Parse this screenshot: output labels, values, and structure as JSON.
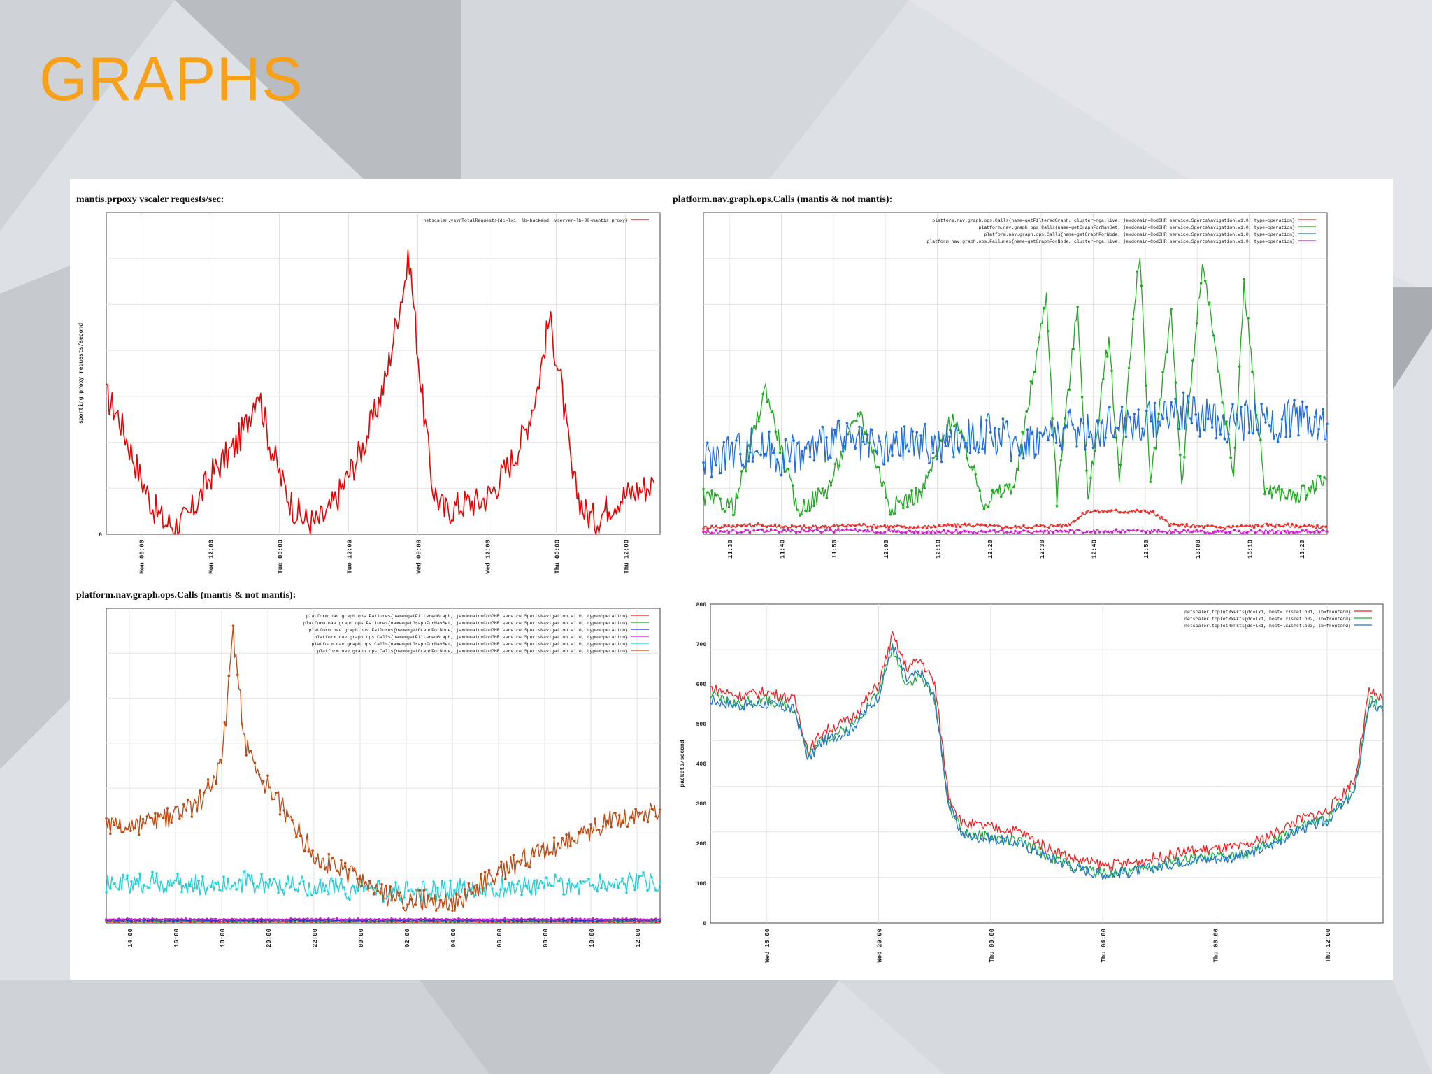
{
  "slide": {
    "title": "GRAPHS",
    "accent_color": "#f7a11a",
    "background_color": "#dcdfe3"
  },
  "charts": {
    "top_left": {
      "title": "mantis.prpoxy vscaler requests/sec:"
    },
    "top_right": {
      "title": "platform.nav.graph.ops.Calls (mantis & not mantis):"
    },
    "bottom_left": {
      "title": "platform.nav.graph.ops.Calls (mantis & not mantis):"
    },
    "bottom_right": {
      "title": ""
    }
  },
  "chart_data": [
    {
      "id": "top_left",
      "type": "line",
      "title": "mantis.prpoxy vscaler requests/sec:",
      "ylabel": "sporting proxy requests/second",
      "xlabel": "",
      "ylim": [
        0,
        7
      ],
      "y_ticks": [
        "0"
      ],
      "x_ticks": [
        "Mon 00:00",
        "Mon 12:00",
        "Tue 00:00",
        "Tue 12:00",
        "Wed 00:00",
        "Wed 12:00",
        "Thu 00:00",
        "Thu 12:00"
      ],
      "x_range": [
        0,
        95
      ],
      "legend_position": "top-right",
      "grid": true,
      "series": [
        {
          "name": "netscaler.vsvrTotalRequests{dc=lx1, lb=backend, vserver=lb-00-mantis_proxy}",
          "color": "#ee0000",
          "x": [
            0,
            2,
            4,
            6,
            8,
            10,
            12,
            14,
            16,
            18,
            20,
            22,
            24,
            26,
            28,
            30,
            32,
            34,
            36,
            38,
            40,
            42,
            44,
            46,
            48,
            50,
            52,
            54,
            56,
            58,
            60,
            62,
            64,
            66,
            68,
            70,
            72,
            74,
            76,
            78,
            80,
            82,
            84,
            86,
            88,
            90,
            92,
            94
          ],
          "y": [
            3.0,
            2.6,
            1.9,
            1.2,
            0.6,
            0.25,
            0.2,
            0.35,
            0.8,
            1.3,
            1.6,
            1.9,
            2.4,
            3.2,
            2.0,
            1.2,
            0.6,
            0.3,
            0.25,
            0.45,
            0.9,
            1.4,
            1.9,
            2.6,
            3.4,
            4.8,
            6.0,
            3.2,
            1.0,
            0.5,
            0.6,
            0.7,
            0.7,
            0.9,
            1.3,
            1.7,
            2.3,
            3.2,
            4.7,
            3.3,
            1.2,
            0.5,
            0.3,
            0.6,
            0.8,
            0.9,
            1.0,
            1.1
          ]
        }
      ]
    },
    {
      "id": "top_right",
      "type": "line",
      "title": "platform.nav.graph.ops.Calls (mantis & not mantis):",
      "xlabel": "",
      "ylabel": "",
      "ylim": [
        0,
        7
      ],
      "x_ticks": [
        "11:30",
        "11:40",
        "11:50",
        "12:00",
        "12:10",
        "12:20",
        "12:30",
        "12:40",
        "12:50",
        "13:00",
        "13:10",
        "13:20"
      ],
      "x_range": [
        0,
        120
      ],
      "legend_position": "top-right",
      "grid": true,
      "series": [
        {
          "name": "platform.nav.graph.ops.Calls{name=getFilteredGraph, cluster=nga.live, jexdomain=CodGHR.service.SportsNavigation.v1.0, type=operation}",
          "color": "#e8302a",
          "x": [
            0,
            10,
            20,
            30,
            40,
            50,
            60,
            70,
            74,
            78,
            82,
            86,
            90,
            100,
            110,
            120
          ],
          "y": [
            0.15,
            0.2,
            0.15,
            0.2,
            0.15,
            0.2,
            0.15,
            0.2,
            0.5,
            0.5,
            0.5,
            0.5,
            0.2,
            0.15,
            0.2,
            0.15
          ]
        },
        {
          "name": "platform.nav.graph.ops.Calls{name=getGraphForNavSet, jexdomain=CodGHR.service.SportsNavigation.v1.0, type=operation}",
          "color": "#22aa22",
          "x": [
            0,
            6,
            12,
            18,
            24,
            30,
            36,
            42,
            48,
            54,
            60,
            66,
            68,
            72,
            74,
            78,
            80,
            84,
            86,
            90,
            92,
            96,
            102,
            104,
            108,
            114,
            120
          ],
          "y": [
            0.8,
            0.6,
            3.2,
            0.5,
            1.0,
            2.7,
            0.6,
            0.9,
            2.6,
            0.7,
            1.1,
            5.2,
            0.8,
            5.0,
            0.7,
            4.3,
            1.2,
            6.2,
            1.0,
            4.9,
            1.1,
            5.9,
            1.3,
            5.4,
            1.0,
            0.8,
            1.2
          ]
        },
        {
          "name": "platform.nav.graph.ops.Calls{name=getGraphForNode, jexdomain=CodGHR.service.SportsNavigation.v1.0, type=operation}",
          "color": "#1f6fe0",
          "x": [
            0,
            5,
            10,
            15,
            20,
            25,
            30,
            35,
            40,
            45,
            50,
            55,
            60,
            65,
            70,
            75,
            80,
            85,
            90,
            95,
            100,
            105,
            110,
            115,
            120
          ],
          "y": [
            1.6,
            1.8,
            1.9,
            1.7,
            1.8,
            2.1,
            1.9,
            1.8,
            2.0,
            1.9,
            2.1,
            2.2,
            2.0,
            2.1,
            2.3,
            2.2,
            2.5,
            2.4,
            2.7,
            2.6,
            2.4,
            2.5,
            2.4,
            2.6,
            2.4
          ]
        },
        {
          "name": "platform.nav.graph.ops.Failures{name=getGraphForNode, cluster=nga.live, jexdomain=CodGHR.service.SportsNavigation.v1.0, type=operation}",
          "color": "#cc22cc",
          "x": [
            0,
            20,
            40,
            60,
            80,
            100,
            120
          ],
          "y": [
            0.05,
            0.08,
            0.06,
            0.05,
            0.07,
            0.05,
            0.06
          ]
        }
      ]
    },
    {
      "id": "bottom_left",
      "type": "line",
      "title": "platform.nav.graph.ops.Calls (mantis & not mantis):",
      "xlabel": "",
      "ylabel": "",
      "ylim": [
        0,
        10
      ],
      "x_ticks": [
        "14:00",
        "16:00",
        "18:00",
        "20:00",
        "22:00",
        "00:00",
        "02:00",
        "04:00",
        "06:00",
        "08:00",
        "10:00",
        "12:00"
      ],
      "x_range": [
        0,
        24
      ],
      "legend_position": "top-right",
      "grid": true,
      "series": [
        {
          "name": "platform.nav.graph.ops.Failures{name=getFilteredGraph, jexdomain=CodGHR.service.SportsNavigation.v1.0, type=operation}",
          "color": "#ee2222",
          "x": [
            0,
            24
          ],
          "y": [
            0.05,
            0.05
          ]
        },
        {
          "name": "platform.nav.graph.ops.Failures{name=getGraphForNavSet, jexdomain=CodGHR.service.SportsNavigation.v1.0, type=operation}",
          "color": "#22aa22",
          "x": [
            0,
            24
          ],
          "y": [
            0.07,
            0.07
          ]
        },
        {
          "name": "platform.nav.graph.ops.Failures{name=getGraphForNode, jexdomain=CodGHR.service.SportsNavigation.v1.0, type=operation}",
          "color": "#2233dd",
          "x": [
            0,
            24
          ],
          "y": [
            0.09,
            0.09
          ]
        },
        {
          "name": "platform.nav.graph.ops.Calls{name=getFilteredGraph, jexdomain=CodGHR.service.SportsNavigation.v1.0, type=operation}",
          "color": "#cc22cc",
          "x": [
            0,
            24
          ],
          "y": [
            0.12,
            0.12
          ]
        },
        {
          "name": "platform.nav.graph.ops.Calls{name=getGraphForNavSet, jexdomain=CodGHR.service.SportsNavigation.v1.0, type=operation}",
          "color": "#22d0d8",
          "x": [
            0,
            2,
            4,
            6,
            8,
            10,
            12,
            14,
            16,
            18,
            20,
            22,
            24
          ],
          "y": [
            1.2,
            1.3,
            1.2,
            1.3,
            1.2,
            1.1,
            1.0,
            1.0,
            1.1,
            1.2,
            1.2,
            1.3,
            1.3
          ]
        },
        {
          "name": "platform.nav.graph.ops.Calls{name=getGraphForNode, jexdomain=CodGHR.service.SportsNavigation.v1.0, type=operation}",
          "color": "#c04a10",
          "x": [
            0,
            1,
            2,
            3,
            4,
            5,
            5.5,
            6,
            6.5,
            7,
            8,
            9,
            10,
            11,
            12,
            13,
            14,
            15,
            16,
            17,
            18,
            19,
            20,
            21,
            22,
            23,
            24
          ],
          "y": [
            3.1,
            3.0,
            3.2,
            3.4,
            3.8,
            5.0,
            9.2,
            5.8,
            4.6,
            4.4,
            3.2,
            2.2,
            1.7,
            1.4,
            0.9,
            0.7,
            0.7,
            0.6,
            1.1,
            1.6,
            2.0,
            2.3,
            2.6,
            2.9,
            3.3,
            3.4,
            3.6
          ]
        }
      ]
    },
    {
      "id": "bottom_right",
      "type": "line",
      "title": "",
      "ylabel": "packets/second",
      "xlabel": "",
      "ylim": [
        0,
        800
      ],
      "y_ticks": [
        "0",
        "100",
        "200",
        "300",
        "400",
        "500",
        "600",
        "700",
        "800"
      ],
      "x_ticks": [
        "Wed 16:00",
        "Wed 20:00",
        "Thu 00:00",
        "Thu 04:00",
        "Thu 08:00",
        "Thu 12:00"
      ],
      "x_range": [
        0,
        24
      ],
      "legend_position": "top-right",
      "grid": true,
      "series": [
        {
          "name": "netscaler.tcpTotRxPkts{dc=lx1, host=lxisnetlb01, lb=frontend}",
          "color": "#ee2222",
          "x": [
            0,
            1,
            2,
            3,
            3.5,
            4,
            5,
            6,
            6.5,
            7,
            7.5,
            8,
            8.5,
            9,
            10,
            11,
            12,
            13,
            14,
            15,
            16,
            17,
            18,
            19,
            20,
            21,
            22,
            23,
            23.5,
            24
          ],
          "y": [
            590,
            570,
            580,
            560,
            430,
            480,
            510,
            600,
            720,
            640,
            660,
            600,
            320,
            250,
            240,
            230,
            190,
            160,
            145,
            150,
            165,
            180,
            185,
            190,
            220,
            260,
            280,
            360,
            580,
            560
          ]
        },
        {
          "name": "netscaler.tcpTotRxPkts{dc=lx1, host=lxisnetlb02, lb=frontend}",
          "color": "#22aa44",
          "x": [
            0,
            1,
            2,
            3,
            3.5,
            4,
            5,
            6,
            6.5,
            7,
            7.5,
            8,
            8.5,
            9,
            10,
            11,
            12,
            13,
            14,
            15,
            16,
            17,
            18,
            19,
            20,
            21,
            22,
            23,
            23.5,
            24
          ],
          "y": [
            570,
            550,
            560,
            540,
            420,
            460,
            490,
            580,
            690,
            600,
            620,
            560,
            300,
            225,
            215,
            205,
            170,
            140,
            125,
            130,
            145,
            160,
            165,
            170,
            200,
            240,
            260,
            340,
            560,
            540
          ]
        },
        {
          "name": "netscaler.tcpTotRxPkts{dc=lx1, host=lxisnetlb03, lb=frontend}",
          "color": "#2277cc",
          "x": [
            0,
            1,
            2,
            3,
            3.5,
            4,
            5,
            6,
            6.5,
            7,
            7.5,
            8,
            8.5,
            9,
            10,
            11,
            12,
            13,
            14,
            15,
            16,
            17,
            18,
            19,
            20,
            21,
            22,
            23,
            23.5,
            24
          ],
          "y": [
            560,
            545,
            550,
            535,
            410,
            455,
            485,
            570,
            700,
            610,
            630,
            565,
            295,
            220,
            212,
            200,
            168,
            138,
            122,
            128,
            142,
            157,
            162,
            167,
            195,
            235,
            255,
            330,
            550,
            530
          ]
        }
      ]
    }
  ]
}
